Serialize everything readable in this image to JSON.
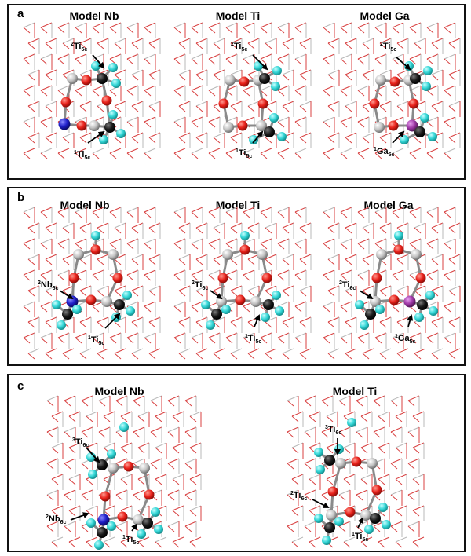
{
  "panels": [
    {
      "label": "a",
      "models": [
        {
          "title": "Model Nb",
          "callouts": [
            [
              "2",
              "Ti",
              "5c"
            ],
            [
              "1",
              "Ti",
              "5c"
            ]
          ]
        },
        {
          "title": "Model Ti",
          "callouts": [
            [
              "2",
              "Ti",
              "5c"
            ],
            [
              "1",
              "Ti",
              "5c"
            ]
          ]
        },
        {
          "title": "Model Ga",
          "callouts": [
            [
              "2",
              "Ti",
              "5c"
            ],
            [
              "1",
              "Ga",
              "5c"
            ]
          ]
        }
      ]
    },
    {
      "label": "b",
      "models": [
        {
          "title": "Model Nb",
          "callouts": [
            [
              "2",
              "Nb",
              "6c"
            ],
            [
              "1",
              "Ti",
              "5c"
            ]
          ]
        },
        {
          "title": "Model Ti",
          "callouts": [
            [
              "2",
              "Ti",
              "6c"
            ],
            [
              "1",
              "Ti",
              "5c"
            ]
          ]
        },
        {
          "title": "Model Ga",
          "callouts": [
            [
              "2",
              "Ti",
              "6c"
            ],
            [
              "1",
              "Ga",
              "5c"
            ]
          ]
        }
      ]
    },
    {
      "label": "c",
      "models": [
        {
          "title": "Model Nb",
          "callouts": [
            [
              "3",
              "Ti",
              "6c"
            ],
            [
              "2",
              "Nb",
              "6c"
            ],
            [
              "1",
              "Ti",
              "5c"
            ]
          ]
        },
        {
          "title": "Model Ti",
          "callouts": [
            [
              "3",
              "Ti",
              "6c"
            ],
            [
              "2",
              "Ti",
              "6c"
            ],
            [
              "1",
              "Ti",
              "5c"
            ]
          ]
        }
      ]
    }
  ],
  "colors": {
    "oxygen": "#e8211a",
    "titanium": "#c4c4c4",
    "carbon": "#1a1a1a",
    "hydrogen": "#33d6d6",
    "niobium": "#1e1ec8",
    "gallium": "#a03aa8",
    "lattice_red": "#d84040",
    "lattice_grey": "#b8b8b8"
  }
}
